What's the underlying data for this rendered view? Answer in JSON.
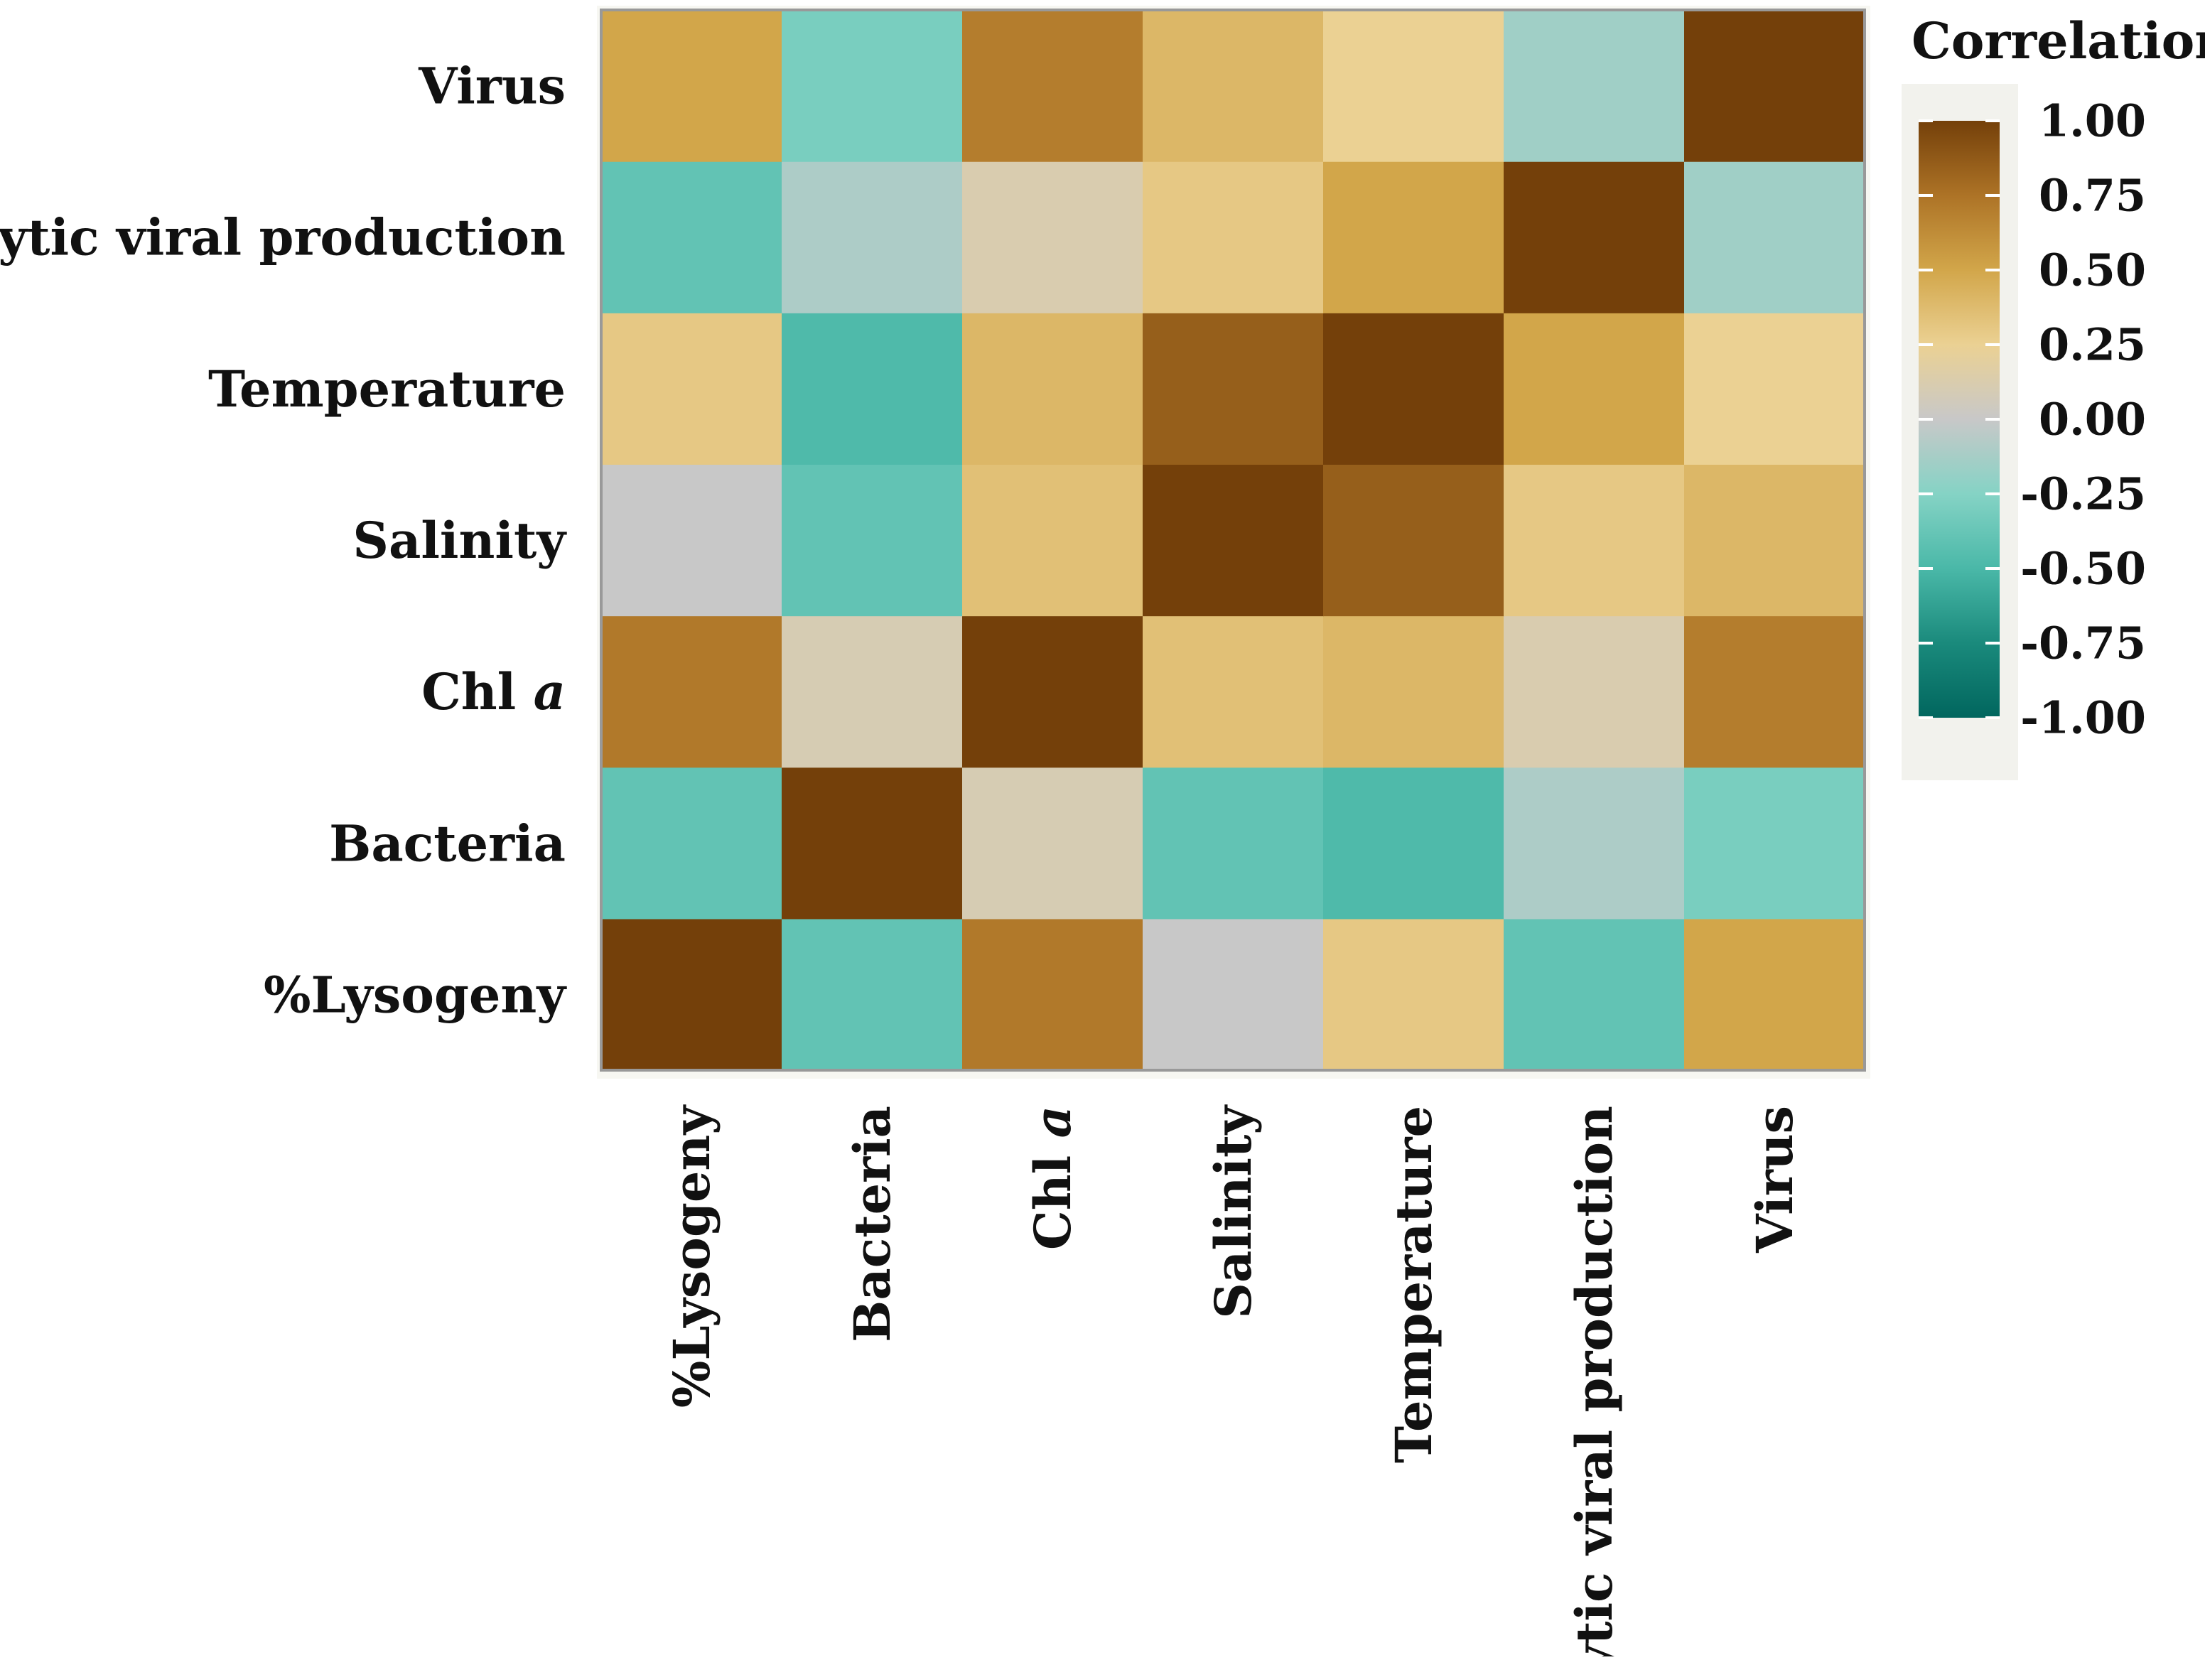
{
  "chart_data": {
    "type": "heatmap",
    "title": "",
    "xlabel": "",
    "ylabel": "",
    "x_categories": [
      {
        "base": "%Lysogeny",
        "italic": ""
      },
      {
        "base": "Bacteria",
        "italic": ""
      },
      {
        "base": "Chl ",
        "italic": "a"
      },
      {
        "base": "Salinity",
        "italic": ""
      },
      {
        "base": "Temperature",
        "italic": ""
      },
      {
        "base": "Lytic viral production",
        "italic": ""
      },
      {
        "base": "Virus",
        "italic": ""
      }
    ],
    "y_categories": [
      {
        "base": "%Lysogeny",
        "italic": ""
      },
      {
        "base": "Bacteria",
        "italic": ""
      },
      {
        "base": "Chl ",
        "italic": "a"
      },
      {
        "base": "Salinity",
        "italic": ""
      },
      {
        "base": "Temperature",
        "italic": ""
      },
      {
        "base": "Lytic viral production",
        "italic": ""
      },
      {
        "base": "Virus",
        "italic": ""
      }
    ],
    "y_order": "bottom-to-top",
    "matrix": [
      [
        1.0,
        -0.4,
        0.72,
        0.0,
        0.3,
        -0.4,
        0.5
      ],
      [
        -0.4,
        1.0,
        0.1,
        -0.4,
        -0.48,
        -0.1,
        -0.3
      ],
      [
        0.72,
        0.1,
        1.0,
        0.35,
        0.4,
        0.12,
        0.7
      ],
      [
        0.0,
        -0.4,
        0.35,
        1.0,
        0.85,
        0.3,
        0.4
      ],
      [
        0.3,
        -0.48,
        0.4,
        0.85,
        1.0,
        0.5,
        0.25
      ],
      [
        -0.4,
        -0.1,
        0.12,
        0.3,
        0.5,
        1.0,
        -0.15
      ],
      [
        0.5,
        -0.3,
        0.7,
        0.4,
        0.25,
        -0.15,
        1.0
      ]
    ],
    "legend": {
      "title": "Correlation",
      "position": "right",
      "ticks": [
        "1.00",
        "0.75",
        "0.50",
        "0.25",
        "0.00",
        "-0.25",
        "-0.50",
        "-0.75",
        "-1.00"
      ],
      "range": [
        -1,
        1
      ]
    },
    "colors": {
      "low": "#01665e",
      "mid_low": "#80cdc1",
      "mid": "#c8c8c8",
      "mid_high": "#f1d079",
      "high": "#74400a",
      "stops": [
        [
          -1.0,
          "#01665e"
        ],
        [
          -0.75,
          "#1a8a7c"
        ],
        [
          -0.5,
          "#4ab8a8"
        ],
        [
          -0.25,
          "#85d3c5"
        ],
        [
          0.0,
          "#c8c8c8"
        ],
        [
          0.25,
          "#ebd193"
        ],
        [
          0.5,
          "#d2a64a"
        ],
        [
          0.75,
          "#ad7326"
        ],
        [
          1.0,
          "#74400a"
        ]
      ],
      "panel_background": "#f7f7f2",
      "panel_border": "#999999"
    }
  }
}
